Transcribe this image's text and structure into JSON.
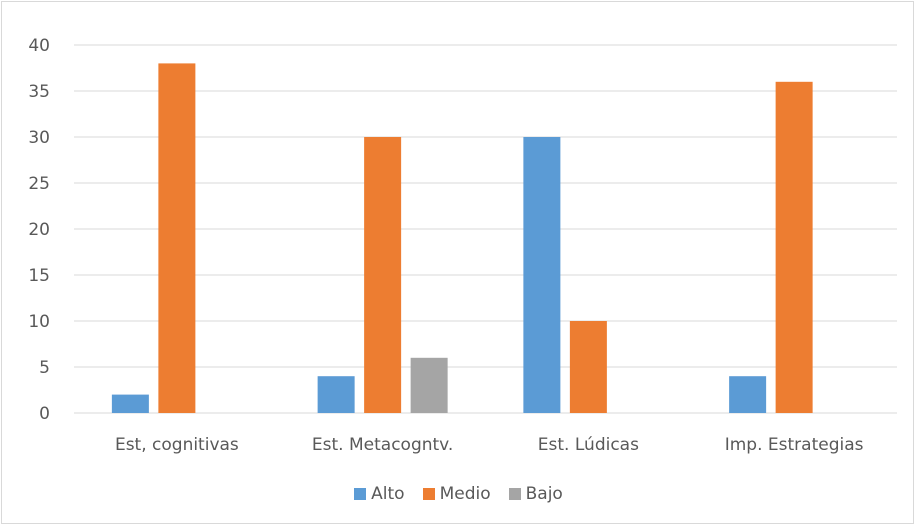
{
  "chart_data": {
    "type": "bar",
    "categories": [
      "Est, cognitivas",
      "Est. Metacogntv.",
      "Est. Lúdicas",
      "Imp. Estrategias"
    ],
    "series": [
      {
        "name": "Alto",
        "values": [
          2,
          4,
          30,
          4
        ],
        "color": "#5b9bd5"
      },
      {
        "name": "Medio",
        "values": [
          38,
          30,
          10,
          36
        ],
        "color": "#ed7d31"
      },
      {
        "name": "Bajo",
        "values": [
          0,
          6,
          0,
          0
        ],
        "color": "#a5a5a5"
      }
    ],
    "title": "",
    "xlabel": "",
    "ylabel": "",
    "ylim": [
      0,
      40
    ],
    "yticks": [
      0,
      5,
      10,
      15,
      20,
      25,
      30,
      35,
      40
    ],
    "grid": true,
    "legend_position": "bottom"
  }
}
